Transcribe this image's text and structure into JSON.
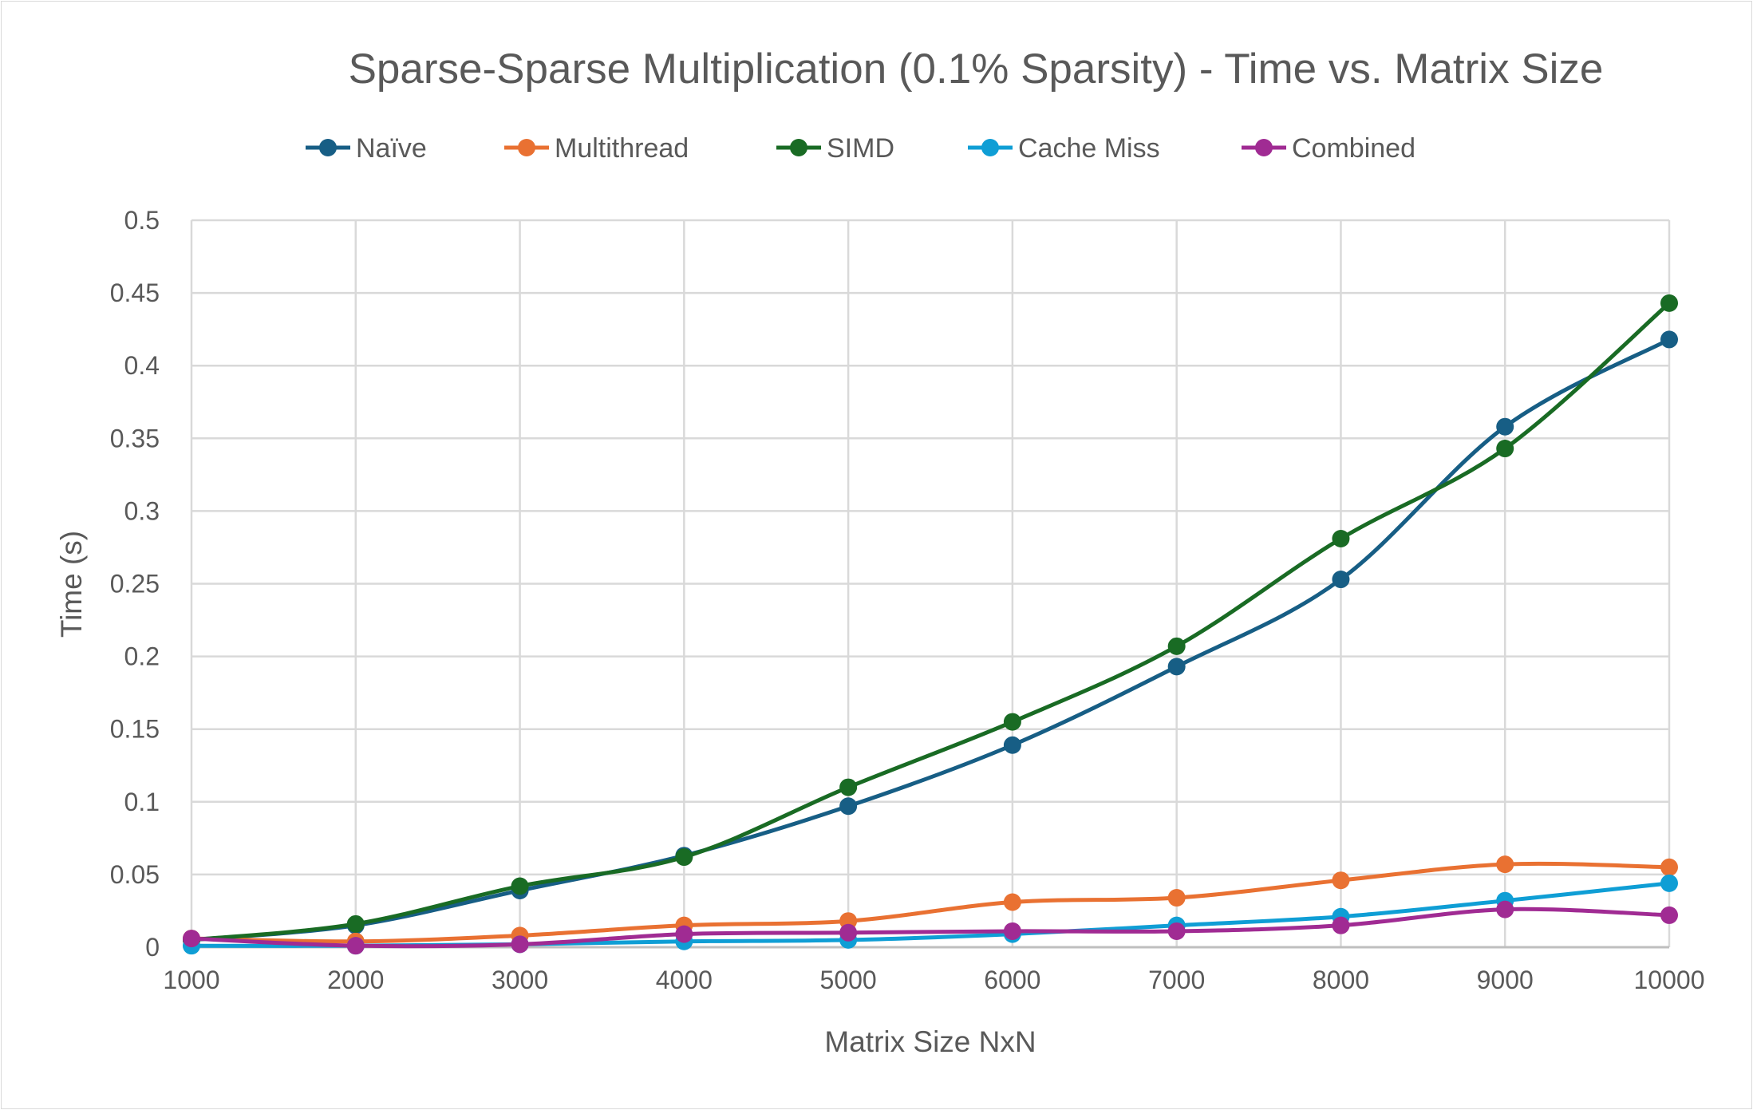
{
  "chart_data": {
    "type": "line",
    "smooth": true,
    "title": "Sparse-Sparse Multiplication (0.1% Sparsity) - Time vs. Matrix Size",
    "xlabel": "Matrix Size NxN",
    "ylabel": "Time (s)",
    "x": [
      1000,
      2000,
      3000,
      4000,
      5000,
      6000,
      7000,
      8000,
      9000,
      10000
    ],
    "x_ticks": [
      "1000",
      "2000",
      "3000",
      "4000",
      "5000",
      "6000",
      "7000",
      "8000",
      "9000",
      "10000"
    ],
    "ylim": [
      0,
      0.5
    ],
    "y_ticks": [
      "0",
      "0.05",
      "0.1",
      "0.15",
      "0.2",
      "0.25",
      "0.3",
      "0.35",
      "0.4",
      "0.45",
      "0.5"
    ],
    "grid": true,
    "legend_position": "top",
    "series": [
      {
        "name": "Naïve",
        "color": "#175E85",
        "values": [
          0.005,
          0.015,
          0.039,
          0.063,
          0.097,
          0.139,
          0.193,
          0.253,
          0.358,
          0.418
        ]
      },
      {
        "name": "Multithread",
        "color": "#E97132",
        "values": [
          0.006,
          0.004,
          0.008,
          0.015,
          0.018,
          0.031,
          0.034,
          0.046,
          0.057,
          0.055
        ]
      },
      {
        "name": "SIMD",
        "color": "#196B24",
        "values": [
          0.005,
          0.016,
          0.042,
          0.062,
          0.11,
          0.155,
          0.207,
          0.281,
          0.343,
          0.443
        ]
      },
      {
        "name": "Cache Miss",
        "color": "#0F9ED5",
        "values": [
          0.001,
          0.001,
          0.002,
          0.004,
          0.005,
          0.009,
          0.015,
          0.021,
          0.032,
          0.044
        ]
      },
      {
        "name": "Combined",
        "color": "#A02B93",
        "values": [
          0.006,
          0.001,
          0.002,
          0.009,
          0.01,
          0.011,
          0.011,
          0.015,
          0.026,
          0.022
        ]
      }
    ]
  }
}
